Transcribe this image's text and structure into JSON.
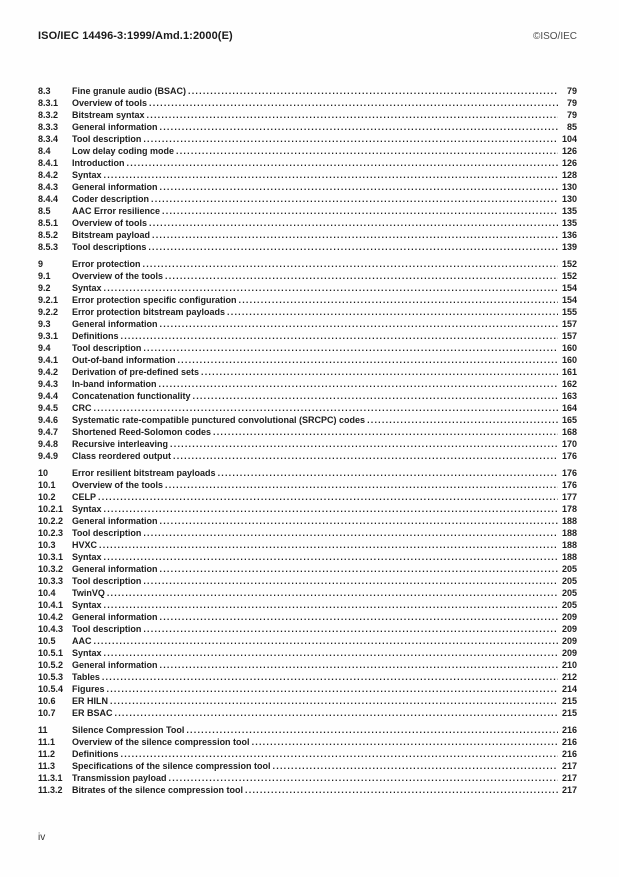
{
  "header": {
    "doc_ref": "ISO/IEC 14496-3:1999/Amd.1:2000(E)",
    "copyright": "©ISO/IEC"
  },
  "footer": {
    "page_label": "iv"
  },
  "toc": {
    "groups": [
      {
        "entries": [
          {
            "num": "8.3",
            "title": "Fine granule audio (BSAC)",
            "page": "79"
          },
          {
            "num": "8.3.1",
            "title": "Overview of tools",
            "page": "79"
          },
          {
            "num": "8.3.2",
            "title": "Bitstream syntax",
            "page": "79"
          },
          {
            "num": "8.3.3",
            "title": "General information",
            "page": "85"
          },
          {
            "num": "8.3.4",
            "title": "Tool description",
            "page": "104"
          },
          {
            "num": "8.4",
            "title": "Low delay coding mode",
            "page": "126"
          },
          {
            "num": "8.4.1",
            "title": "Introduction",
            "page": "126"
          },
          {
            "num": "8.4.2",
            "title": "Syntax",
            "page": "128"
          },
          {
            "num": "8.4.3",
            "title": "General information",
            "page": "130"
          },
          {
            "num": "8.4.4",
            "title": "Coder description",
            "page": "130"
          },
          {
            "num": "8.5",
            "title": "AAC Error resilience",
            "page": "135"
          },
          {
            "num": "8.5.1",
            "title": "Overview of tools",
            "page": "135"
          },
          {
            "num": "8.5.2",
            "title": "Bitstream payload",
            "page": "136"
          },
          {
            "num": "8.5.3",
            "title": "Tool descriptions",
            "page": "139"
          }
        ]
      },
      {
        "entries": [
          {
            "num": "9",
            "title": "Error protection",
            "page": "152"
          },
          {
            "num": "9.1",
            "title": "Overview of the tools",
            "page": "152"
          },
          {
            "num": "9.2",
            "title": "Syntax",
            "page": "154"
          },
          {
            "num": "9.2.1",
            "title": "Error protection specific configuration",
            "page": "154"
          },
          {
            "num": "9.2.2",
            "title": "Error protection bitstream payloads",
            "page": "155"
          },
          {
            "num": "9.3",
            "title": "General information",
            "page": "157"
          },
          {
            "num": "9.3.1",
            "title": "Definitions",
            "page": "157"
          },
          {
            "num": "9.4",
            "title": "Tool description",
            "page": "160"
          },
          {
            "num": "9.4.1",
            "title": "Out-of-band information",
            "page": "160"
          },
          {
            "num": "9.4.2",
            "title": "Derivation of pre-defined sets",
            "page": "161"
          },
          {
            "num": "9.4.3",
            "title": "In-band information",
            "page": "162"
          },
          {
            "num": "9.4.4",
            "title": "Concatenation functionality",
            "page": "163"
          },
          {
            "num": "9.4.5",
            "title": "CRC",
            "page": "164"
          },
          {
            "num": "9.4.6",
            "title": "Systematic rate-compatible punctured convolutional (SRCPC) codes",
            "page": "165"
          },
          {
            "num": "9.4.7",
            "title": "Shortened Reed-Solomon codes",
            "page": "168"
          },
          {
            "num": "9.4.8",
            "title": "Recursive interleaving",
            "page": "170"
          },
          {
            "num": "9.4.9",
            "title": "Class reordered output",
            "page": "176"
          }
        ]
      },
      {
        "entries": [
          {
            "num": "10",
            "title": "Error resilient bitstream payloads",
            "page": "176"
          },
          {
            "num": "10.1",
            "title": "Overview of the tools",
            "page": "176"
          },
          {
            "num": "10.2",
            "title": "CELP",
            "page": "177"
          },
          {
            "num": "10.2.1",
            "title": "Syntax",
            "page": "178"
          },
          {
            "num": "10.2.2",
            "title": "General information",
            "page": "188"
          },
          {
            "num": "10.2.3",
            "title": "Tool description",
            "page": "188"
          },
          {
            "num": "10.3",
            "title": "HVXC",
            "page": "188"
          },
          {
            "num": "10.3.1",
            "title": "Syntax",
            "page": "188"
          },
          {
            "num": "10.3.2",
            "title": "General information",
            "page": "205"
          },
          {
            "num": "10.3.3",
            "title": "Tool description",
            "page": "205"
          },
          {
            "num": "10.4",
            "title": "TwinVQ",
            "page": "205"
          },
          {
            "num": "10.4.1",
            "title": "Syntax",
            "page": "205"
          },
          {
            "num": "10.4.2",
            "title": "General information",
            "page": "209"
          },
          {
            "num": "10.4.3",
            "title": "Tool description",
            "page": "209"
          },
          {
            "num": "10.5",
            "title": "AAC",
            "page": "209"
          },
          {
            "num": "10.5.1",
            "title": "Syntax",
            "page": "209"
          },
          {
            "num": "10.5.2",
            "title": "General information",
            "page": "210"
          },
          {
            "num": "10.5.3",
            "title": "Tables",
            "page": "212"
          },
          {
            "num": "10.5.4",
            "title": "Figures",
            "page": "214"
          },
          {
            "num": "10.6",
            "title": "ER HILN",
            "page": "215"
          },
          {
            "num": "10.7",
            "title": "ER BSAC",
            "page": "215"
          }
        ]
      },
      {
        "entries": [
          {
            "num": "11",
            "title": "Silence Compression Tool",
            "page": "216"
          },
          {
            "num": "11.1",
            "title": "Overview of the silence compression tool",
            "page": "216"
          },
          {
            "num": "11.2",
            "title": "Definitions",
            "page": "216"
          },
          {
            "num": "11.3",
            "title": "Specifications of the silence compression tool",
            "page": "217"
          },
          {
            "num": "11.3.1",
            "title": "Transmission payload",
            "page": "217"
          },
          {
            "num": "11.3.2",
            "title": "Bitrates of the silence compression tool",
            "page": "217"
          }
        ]
      }
    ]
  }
}
